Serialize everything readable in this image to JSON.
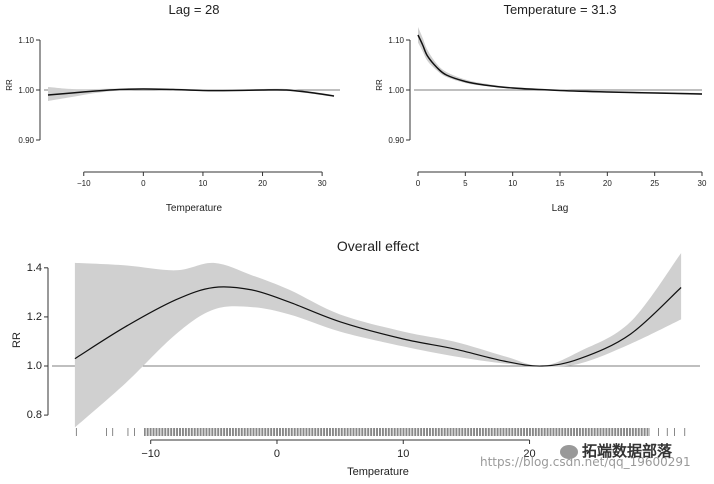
{
  "chart_data": [
    {
      "type": "line",
      "title": "Lag = 28",
      "xlabel": "Temperature",
      "ylabel": "RR",
      "xlim": [
        -16,
        33
      ],
      "ylim": [
        0.88,
        1.14
      ],
      "xticks": [
        -10,
        0,
        10,
        20,
        30
      ],
      "xtick_labels": [
        "−10",
        "0",
        "10",
        "20",
        "30"
      ],
      "yticks": [
        0.9,
        1.0,
        1.1
      ],
      "ytick_labels": [
        "0.90",
        "1.00",
        "1.10"
      ],
      "reference_line": 1.0,
      "series": [
        {
          "x": [
            -16,
            -12,
            -8,
            -4,
            0,
            5,
            10,
            15,
            20,
            24,
            28,
            32
          ],
          "y": [
            0.99,
            0.994,
            0.998,
            1.001,
            1.002,
            1.001,
            0.999,
            0.999,
            1.0,
            1.0,
            0.995,
            0.988
          ],
          "ci_low": [
            0.978,
            0.986,
            0.994,
            0.999,
            1.0,
            0.999,
            0.998,
            0.998,
            0.998,
            0.998,
            0.993,
            0.986
          ],
          "ci_high": [
            1.006,
            1.002,
            1.002,
            1.003,
            1.004,
            1.003,
            1.001,
            1.001,
            1.002,
            1.002,
            0.997,
            0.99
          ]
        }
      ]
    },
    {
      "type": "line",
      "title": "Temperature = 31.3",
      "xlabel": "Lag",
      "ylabel": "RR",
      "xlim": [
        0,
        30
      ],
      "ylim": [
        0.88,
        1.14
      ],
      "xticks": [
        0,
        5,
        10,
        15,
        20,
        25,
        30
      ],
      "xtick_labels": [
        "0",
        "5",
        "10",
        "15",
        "20",
        "25",
        "30"
      ],
      "yticks": [
        0.9,
        1.0,
        1.1
      ],
      "ytick_labels": [
        "0.90",
        "1.00",
        "1.10"
      ],
      "reference_line": 1.0,
      "series": [
        {
          "x": [
            0,
            0.5,
            1,
            2,
            3,
            5,
            7,
            10,
            15,
            20,
            25,
            30
          ],
          "y": [
            1.11,
            1.09,
            1.068,
            1.045,
            1.03,
            1.017,
            1.01,
            1.004,
            0.999,
            0.996,
            0.994,
            0.992
          ],
          "ci_low": [
            1.095,
            1.077,
            1.058,
            1.039,
            1.026,
            1.014,
            1.008,
            1.003,
            0.998,
            0.995,
            0.993,
            0.99
          ],
          "ci_high": [
            1.126,
            1.104,
            1.08,
            1.052,
            1.036,
            1.021,
            1.013,
            1.006,
            1.001,
            0.998,
            0.996,
            0.994
          ]
        }
      ]
    },
    {
      "type": "line",
      "title": "Overall effect",
      "xlabel": "Temperature",
      "ylabel": "RR",
      "xlim": [
        -17.5,
        33.5
      ],
      "ylim": [
        0.78,
        1.44
      ],
      "xticks": [
        -10,
        0,
        10,
        20
      ],
      "xtick_labels": [
        "−10",
        "0",
        "10",
        "20"
      ],
      "yticks": [
        0.8,
        1.0,
        1.2,
        1.4
      ],
      "ytick_labels": [
        "0.8",
        "1.0",
        "1.2",
        "1.4"
      ],
      "reference_line": 1.0,
      "rug": true,
      "series": [
        {
          "x": [
            -16,
            -12,
            -8,
            -5,
            -2,
            1,
            5,
            10,
            14,
            18,
            21,
            24,
            28,
            32
          ],
          "y": [
            1.03,
            1.16,
            1.27,
            1.32,
            1.31,
            1.26,
            1.18,
            1.11,
            1.07,
            1.02,
            1.0,
            1.03,
            1.13,
            1.32
          ],
          "ci_low": [
            0.75,
            0.93,
            1.13,
            1.23,
            1.24,
            1.21,
            1.14,
            1.08,
            1.04,
            1.01,
            0.999,
            1.01,
            1.09,
            1.19
          ],
          "ci_high": [
            1.42,
            1.41,
            1.39,
            1.42,
            1.37,
            1.31,
            1.21,
            1.14,
            1.1,
            1.04,
            1.001,
            1.06,
            1.18,
            1.46
          ]
        }
      ]
    }
  ],
  "watermark": {
    "url_text": "https://blog.csdn.net/qq_19600291",
    "brand_text": "拓端数据部落"
  }
}
